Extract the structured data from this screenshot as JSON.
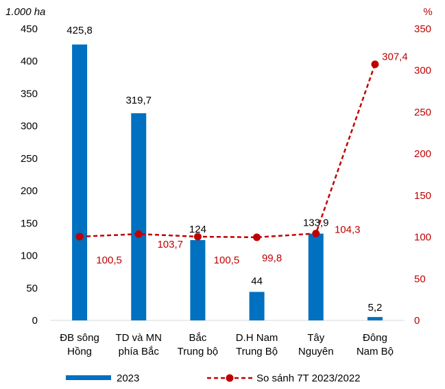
{
  "chart_data": {
    "type": "bar",
    "title": "",
    "y_left_unit": "1.000 ha",
    "y_right_unit": "%",
    "categories": [
      [
        "ĐB sông",
        "Hồng"
      ],
      [
        "TD và MN",
        "phía Bắc"
      ],
      [
        "Bắc",
        "Trung bộ"
      ],
      [
        "D.H Nam",
        "Trung Bộ"
      ],
      [
        "Tây",
        "Nguyên"
      ],
      [
        "Đông",
        "Nam Bộ"
      ]
    ],
    "ylim_left": [
      0,
      450
    ],
    "yticks_left": [
      "0",
      "50",
      "100",
      "150",
      "200",
      "250",
      "300",
      "350",
      "400",
      "450"
    ],
    "ylim_right": [
      0,
      350
    ],
    "yticks_right": [
      "0",
      "50",
      "100",
      "150",
      "200",
      "250",
      "300",
      "350"
    ],
    "series": [
      {
        "name": "2023",
        "type": "bar",
        "axis": "left",
        "color": "#0070c0",
        "values": [
          425.8,
          319.7,
          124,
          44,
          133.9,
          5.2
        ],
        "labels": [
          "425,8",
          "319,7",
          "124",
          "44",
          "133,9",
          "5,2"
        ]
      },
      {
        "name": "So sánh 7T 2023/2022",
        "type": "line",
        "axis": "right",
        "color": "#c00000",
        "values": [
          100.5,
          103.7,
          100.5,
          99.8,
          104.3,
          307.4
        ],
        "labels": [
          "100,5",
          "103,7",
          "100,5",
          "99,8",
          "104,3",
          "307,4"
        ]
      }
    ],
    "legend": "bottom",
    "grid": false
  }
}
